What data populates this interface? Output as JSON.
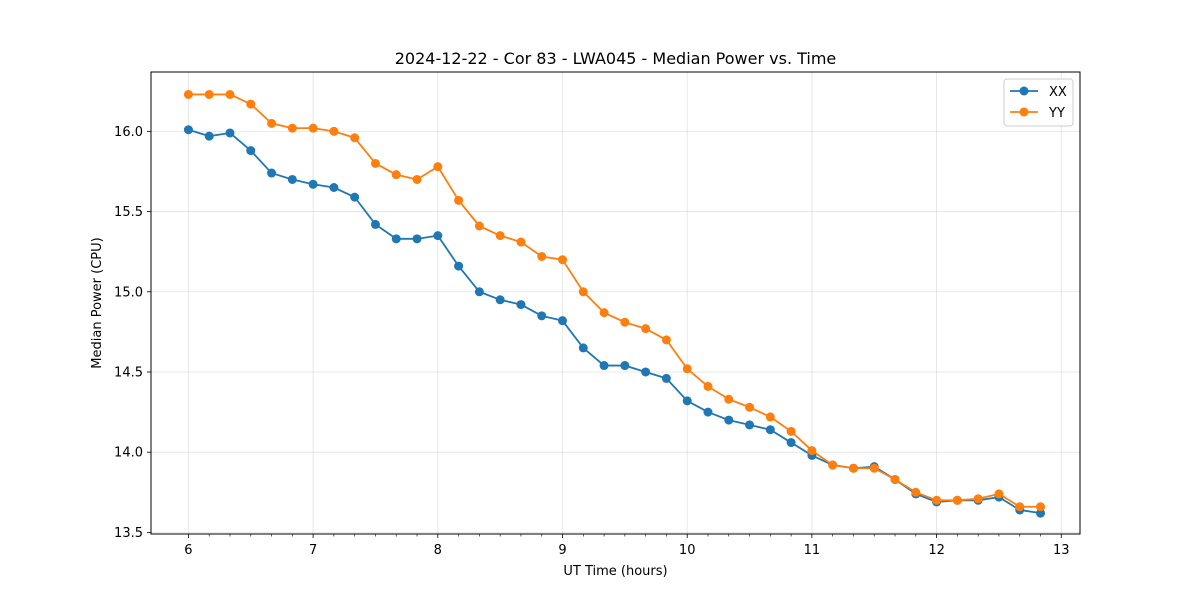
{
  "chart_data": {
    "type": "line",
    "title": "2024-12-22 - Cor 83 - LWA045 - Median Power vs. Time",
    "xlabel": "UT Time (hours)",
    "ylabel": "Median Power (CPU)",
    "xlim": [
      5.7,
      13.15
    ],
    "ylim": [
      13.49,
      16.37
    ],
    "xticks": [
      6,
      7,
      8,
      9,
      10,
      11,
      12,
      13
    ],
    "xtick_labels": [
      "6",
      "7",
      "8",
      "9",
      "10",
      "11",
      "12",
      "13"
    ],
    "yticks": [
      13.5,
      14.0,
      14.5,
      15.0,
      15.5,
      16.0
    ],
    "ytick_labels": [
      "13.5",
      "14.0",
      "14.5",
      "15.0",
      "15.5",
      "16.0"
    ],
    "grid": true,
    "legend_position": "top-right",
    "x": [
      6.0,
      6.1667,
      6.3333,
      6.5,
      6.6667,
      6.8333,
      7.0,
      7.1667,
      7.3333,
      7.5,
      7.6667,
      7.8333,
      8.0,
      8.1667,
      8.3333,
      8.5,
      8.6667,
      8.8333,
      9.0,
      9.1667,
      9.3333,
      9.5,
      9.6667,
      9.8333,
      10.0,
      10.1667,
      10.3333,
      10.5,
      10.6667,
      10.8333,
      11.0,
      11.1667,
      11.3333,
      11.5,
      11.6667,
      11.8333,
      12.0,
      12.1667,
      12.3333,
      12.5,
      12.6667,
      12.8333
    ],
    "series": [
      {
        "name": "XX",
        "color": "#1f77b4",
        "values": [
          16.01,
          15.97,
          15.99,
          15.88,
          15.74,
          15.7,
          15.67,
          15.65,
          15.59,
          15.42,
          15.33,
          15.33,
          15.35,
          15.16,
          15.0,
          14.95,
          14.92,
          14.85,
          14.82,
          14.65,
          14.54,
          14.54,
          14.5,
          14.46,
          14.32,
          14.25,
          14.2,
          14.17,
          14.14,
          14.06,
          13.98,
          13.92,
          13.9,
          13.91,
          13.83,
          13.74,
          13.69,
          13.7,
          13.7,
          13.72,
          13.64,
          13.62
        ]
      },
      {
        "name": "YY",
        "color": "#ff7f0e",
        "values": [
          16.23,
          16.23,
          16.23,
          16.17,
          16.05,
          16.02,
          16.02,
          16.0,
          15.96,
          15.8,
          15.73,
          15.7,
          15.78,
          15.57,
          15.41,
          15.35,
          15.31,
          15.22,
          15.2,
          15.0,
          14.87,
          14.81,
          14.77,
          14.7,
          14.52,
          14.41,
          14.33,
          14.28,
          14.22,
          14.13,
          14.01,
          13.92,
          13.9,
          13.9,
          13.83,
          13.75,
          13.7,
          13.7,
          13.71,
          13.74,
          13.66,
          13.66
        ]
      }
    ]
  }
}
